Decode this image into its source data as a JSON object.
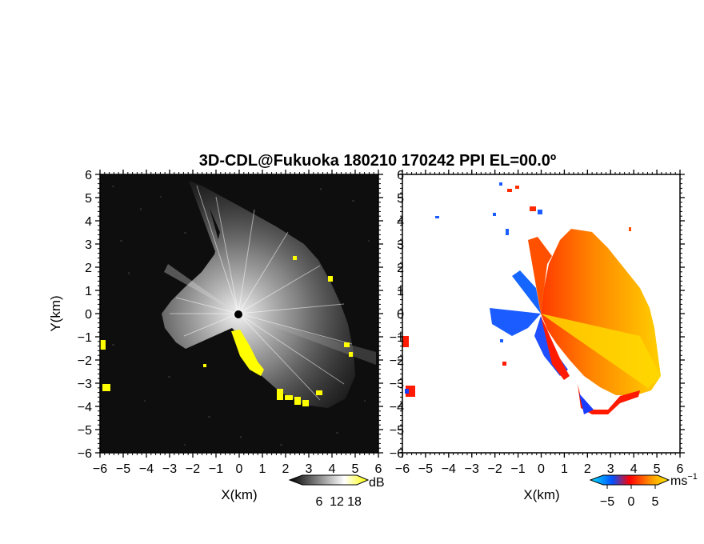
{
  "chart_data": [
    {
      "type": "heatmap",
      "panel": "reflectivity",
      "title": "3D-CDL@Fukuoka 180210 170242 PPI EL=00.0º",
      "xlabel": "X(km)",
      "ylabel": "Y(km)",
      "xlim": [
        -6,
        6
      ],
      "ylim": [
        -6,
        6
      ],
      "xticks": [
        -6,
        -5,
        -4,
        -3,
        -2,
        -1,
        0,
        1,
        2,
        3,
        4,
        5,
        6
      ],
      "yticks": [
        -6,
        -5,
        -4,
        -3,
        -2,
        -1,
        0,
        1,
        2,
        3,
        4,
        5,
        6
      ],
      "background_color": "#0e0e0e",
      "colormap": [
        "#000000",
        "#ffffff",
        "#ffff00"
      ],
      "colorbar": {
        "unit": "dB",
        "ticks": [
          6,
          12,
          18
        ]
      }
    },
    {
      "type": "heatmap",
      "panel": "radial-velocity",
      "xlabel": "X(km)",
      "xlim": [
        -6,
        6
      ],
      "ylim": [
        -6,
        6
      ],
      "xticks": [
        -6,
        -5,
        -4,
        -3,
        -2,
        -1,
        0,
        1,
        2,
        3,
        4,
        5,
        6
      ],
      "yticks": [
        -6,
        -5,
        -4,
        -3,
        -2,
        -1,
        0,
        1,
        2,
        3,
        4,
        5,
        6
      ],
      "background_color": "#ffffff",
      "colormap": [
        "#00ffff",
        "#0044ff",
        "#ff0000",
        "#ff9900",
        "#ffee00"
      ],
      "colorbar": {
        "unit": "ms",
        "unit_exp": "−1",
        "ticks": [
          -5,
          0,
          5
        ]
      }
    }
  ]
}
